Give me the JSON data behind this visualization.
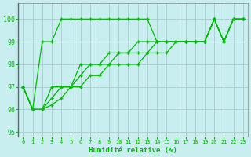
{
  "xlabel": "Humidité relative (%)",
  "background_color": "#c8eef0",
  "grid_color": "#aacccc",
  "line_color": "#00bb00",
  "xlim": [
    -0.5,
    23.5
  ],
  "ylim": [
    94.8,
    100.7
  ],
  "yticks": [
    95,
    96,
    97,
    98,
    99,
    100
  ],
  "xticks": [
    0,
    1,
    2,
    3,
    4,
    5,
    6,
    7,
    8,
    9,
    10,
    11,
    12,
    13,
    14,
    15,
    16,
    17,
    18,
    19,
    20,
    21,
    22,
    23
  ],
  "series": [
    [
      97,
      96,
      99,
      99,
      100,
      100,
      100,
      100,
      100,
      100,
      100,
      100,
      100,
      100,
      99,
      99,
      99,
      99,
      99,
      99,
      100,
      99,
      100,
      100
    ],
    [
      97,
      96,
      96,
      97,
      97,
      97,
      98,
      98,
      98,
      98.5,
      98.5,
      98.5,
      99,
      99,
      99,
      99,
      99,
      99,
      99,
      99,
      100,
      99,
      100,
      100
    ],
    [
      97,
      96,
      96,
      96.5,
      97,
      97,
      97.5,
      98,
      98,
      98,
      98.5,
      98.5,
      98.5,
      98.5,
      99,
      99,
      99,
      99,
      99,
      99,
      100,
      99,
      100,
      100
    ],
    [
      97,
      96,
      96,
      96.2,
      96.5,
      97,
      97,
      97.5,
      97.5,
      98,
      98,
      98,
      98,
      98.5,
      98.5,
      98.5,
      99,
      99,
      99,
      99,
      100,
      99,
      100,
      100
    ]
  ]
}
